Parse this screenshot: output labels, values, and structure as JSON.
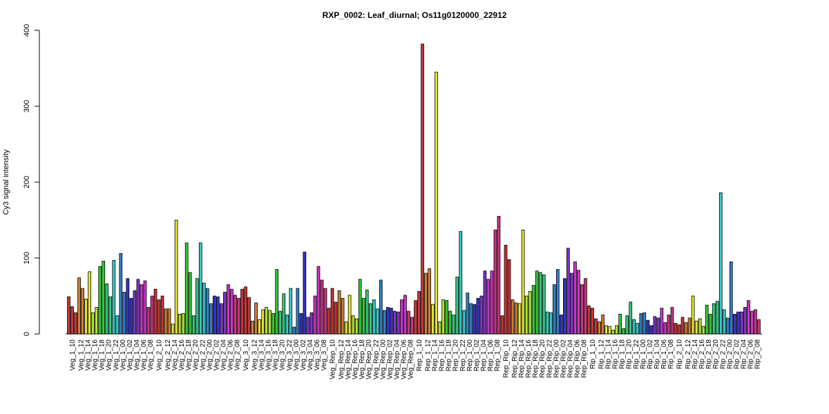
{
  "chart_data": {
    "type": "bar",
    "title": "RXP_0002: Leaf_diurnal; Os11g0120000_22912",
    "ylabel": "Cy3 signal intensity",
    "xlabel": "",
    "ylim": [
      0,
      400
    ],
    "yticks": [
      0,
      100,
      200,
      300,
      400
    ],
    "grid": false,
    "legend": "none",
    "groups": [
      {
        "label": "Veg_1_10",
        "values": [
          49,
          36,
          28
        ],
        "color": "#cc3333"
      },
      {
        "label": "Veg_1_12",
        "values": [
          74,
          60
        ],
        "color": "#cc8033"
      },
      {
        "label": "Veg_1_14",
        "values": [
          46,
          82
        ],
        "color": "#e6e633"
      },
      {
        "label": "Veg_1_16",
        "values": [
          28,
          35
        ],
        "color": "#b3e633"
      },
      {
        "label": "Veg_1_18",
        "values": [
          89,
          96
        ],
        "color": "#33cc33"
      },
      {
        "label": "Veg_1_20",
        "values": [
          66,
          49
        ],
        "color": "#33cc80"
      },
      {
        "label": "Veg_1_22",
        "values": [
          97,
          24
        ],
        "color": "#33cccc"
      },
      {
        "label": "Veg_1_00",
        "values": [
          106,
          55
        ],
        "color": "#3380cc"
      },
      {
        "label": "Veg_1_02",
        "values": [
          73,
          47
        ],
        "color": "#3333cc"
      },
      {
        "label": "Veg_1_04",
        "values": [
          57,
          72
        ],
        "color": "#8033cc"
      },
      {
        "label": "Veg_1_06",
        "values": [
          65,
          70
        ],
        "color": "#cc33cc"
      },
      {
        "label": "Veg_1_08",
        "values": [
          35,
          50
        ],
        "color": "#cc3380"
      },
      {
        "label": "Veg_2_10",
        "values": [
          59,
          45,
          50
        ],
        "color": "#cc3333"
      },
      {
        "label": "Veg_2_12",
        "values": [
          33,
          33
        ],
        "color": "#cc8033"
      },
      {
        "label": "Veg_2_14",
        "values": [
          13,
          150
        ],
        "color": "#e6e633"
      },
      {
        "label": "Veg_2_16",
        "values": [
          26,
          27
        ],
        "color": "#b3e633"
      },
      {
        "label": "Veg_2_18",
        "values": [
          120,
          81
        ],
        "color": "#33cc33"
      },
      {
        "label": "Veg_2_20",
        "values": [
          24,
          73
        ],
        "color": "#33cc80"
      },
      {
        "label": "Veg_2_22",
        "values": [
          120,
          67
        ],
        "color": "#33cccc"
      },
      {
        "label": "Veg_2_00",
        "values": [
          60,
          40
        ],
        "color": "#3380cc"
      },
      {
        "label": "Veg_2_02",
        "values": [
          50,
          49
        ],
        "color": "#3333cc"
      },
      {
        "label": "Veg_2_04",
        "values": [
          40,
          55
        ],
        "color": "#8033cc"
      },
      {
        "label": "Veg_2_06",
        "values": [
          65,
          59
        ],
        "color": "#cc33cc"
      },
      {
        "label": "Veg_2_08",
        "values": [
          51,
          47
        ],
        "color": "#cc3380"
      },
      {
        "label": "Veg_3_10",
        "values": [
          59,
          62,
          48
        ],
        "color": "#cc3333"
      },
      {
        "label": "Veg_3_12",
        "values": [
          17,
          41
        ],
        "color": "#cc8033"
      },
      {
        "label": "Veg_3_14",
        "values": [
          19,
          32
        ],
        "color": "#e6e633"
      },
      {
        "label": "Veg_3_16",
        "values": [
          35,
          31
        ],
        "color": "#b3e633"
      },
      {
        "label": "Veg_3_18",
        "values": [
          27,
          85
        ],
        "color": "#33cc33"
      },
      {
        "label": "Veg_3_20",
        "values": [
          30,
          53
        ],
        "color": "#33cc80"
      },
      {
        "label": "Veg_3_22",
        "values": [
          25,
          60
        ],
        "color": "#33cccc"
      },
      {
        "label": "Veg_3_00",
        "values": [
          9,
          60
        ],
        "color": "#3380cc"
      },
      {
        "label": "Veg_3_02",
        "values": [
          27,
          108
        ],
        "color": "#3333cc"
      },
      {
        "label": "Veg_3_04",
        "values": [
          22,
          28
        ],
        "color": "#8033cc"
      },
      {
        "label": "Veg_3_06",
        "values": [
          50,
          89
        ],
        "color": "#cc33cc"
      },
      {
        "label": "Veg_3_08",
        "values": [
          71,
          60
        ],
        "color": "#cc3380"
      },
      {
        "label": "Veg_Rep_10",
        "values": [
          34,
          60,
          42
        ],
        "color": "#cc3333"
      },
      {
        "label": "Veg_Rep_12",
        "values": [
          57,
          47
        ],
        "color": "#cc8033"
      },
      {
        "label": "Veg_Rep_14",
        "values": [
          16,
          51
        ],
        "color": "#e6e633"
      },
      {
        "label": "Veg_Rep_16",
        "values": [
          24,
          20
        ],
        "color": "#b3e633"
      },
      {
        "label": "Veg_Rep_18",
        "values": [
          72,
          47
        ],
        "color": "#33cc33"
      },
      {
        "label": "Veg_Rep_20",
        "values": [
          58,
          40
        ],
        "color": "#33cc80"
      },
      {
        "label": "Veg_Rep_22",
        "values": [
          45,
          33
        ],
        "color": "#33cccc"
      },
      {
        "label": "Veg_Rep_00",
        "values": [
          71,
          31
        ],
        "color": "#3380cc"
      },
      {
        "label": "Veg_Rep_02",
        "values": [
          35,
          34
        ],
        "color": "#3333cc"
      },
      {
        "label": "Veg_Rep_04",
        "values": [
          30,
          29
        ],
        "color": "#8033cc"
      },
      {
        "label": "Veg_Rep_06",
        "values": [
          45,
          51
        ],
        "color": "#cc33cc"
      },
      {
        "label": "Veg_Rep_08",
        "values": [
          30,
          22
        ],
        "color": "#cc3380"
      },
      {
        "label": "Rep_1_10",
        "values": [
          44,
          56,
          382
        ],
        "color": "#cc3333"
      },
      {
        "label": "Rep_1_12",
        "values": [
          80,
          86
        ],
        "color": "#cc8033"
      },
      {
        "label": "Rep_1_14",
        "values": [
          39,
          345
        ],
        "color": "#e6e633"
      },
      {
        "label": "Rep_1_16",
        "values": [
          16,
          45
        ],
        "color": "#b3e633"
      },
      {
        "label": "Rep_1_18",
        "values": [
          44,
          30
        ],
        "color": "#33cc33"
      },
      {
        "label": "Rep_1_20",
        "values": [
          25,
          75
        ],
        "color": "#33cc80"
      },
      {
        "label": "Rep_1_22",
        "values": [
          135,
          31
        ],
        "color": "#33cccc"
      },
      {
        "label": "Rep_1_00",
        "values": [
          54,
          40
        ],
        "color": "#3380cc"
      },
      {
        "label": "Rep_1_02",
        "values": [
          39,
          47
        ],
        "color": "#3333cc"
      },
      {
        "label": "Rep_1_04",
        "values": [
          50,
          83
        ],
        "color": "#8033cc"
      },
      {
        "label": "Rep_1_06",
        "values": [
          72,
          83
        ],
        "color": "#cc33cc"
      },
      {
        "label": "Rep_1_08",
        "values": [
          137,
          155
        ],
        "color": "#cc3380"
      },
      {
        "label": "Rep_Rip_10",
        "values": [
          24,
          117,
          98
        ],
        "color": "#cc3333"
      },
      {
        "label": "Rep_Rip_12",
        "values": [
          45,
          41
        ],
        "color": "#cc8033"
      },
      {
        "label": "Rep_Rip_14",
        "values": [
          40,
          137
        ],
        "color": "#e6e633"
      },
      {
        "label": "Rep_Rip_16",
        "values": [
          50,
          56
        ],
        "color": "#b3e633"
      },
      {
        "label": "Rep_Rip_18",
        "values": [
          64,
          83
        ],
        "color": "#33cc33"
      },
      {
        "label": "Rep_Rip_20",
        "values": [
          81,
          78
        ],
        "color": "#33cc80"
      },
      {
        "label": "Rep_Rip_22",
        "values": [
          29,
          28
        ],
        "color": "#33cccc"
      },
      {
        "label": "Rep_Rip_00",
        "values": [
          65,
          85
        ],
        "color": "#3380cc"
      },
      {
        "label": "Rep_Rip_02",
        "values": [
          25,
          73
        ],
        "color": "#3333cc"
      },
      {
        "label": "Rep_Rip_04",
        "values": [
          113,
          80
        ],
        "color": "#8033cc"
      },
      {
        "label": "Rep_Rip_06",
        "values": [
          95,
          84
        ],
        "color": "#cc33cc"
      },
      {
        "label": "Rep_Rip_08",
        "values": [
          65,
          73
        ],
        "color": "#cc3380"
      },
      {
        "label": "Rip_1_10",
        "values": [
          37,
          34,
          20
        ],
        "color": "#cc3333"
      },
      {
        "label": "Rip_1_12",
        "values": [
          16,
          25
        ],
        "color": "#cc8033"
      },
      {
        "label": "Rip_1_14",
        "values": [
          11,
          10
        ],
        "color": "#e6e633"
      },
      {
        "label": "Rip_1_16",
        "values": [
          5,
          11
        ],
        "color": "#b3e633"
      },
      {
        "label": "Rip_1_18",
        "values": [
          26,
          7
        ],
        "color": "#33cc33"
      },
      {
        "label": "Rip_1_20",
        "values": [
          24,
          42
        ],
        "color": "#33cc80"
      },
      {
        "label": "Rip_1_22",
        "values": [
          19,
          14
        ],
        "color": "#33cccc"
      },
      {
        "label": "Rip_1_00",
        "values": [
          27,
          28
        ],
        "color": "#3380cc"
      },
      {
        "label": "Rip_1_02",
        "values": [
          18,
          11
        ],
        "color": "#3333cc"
      },
      {
        "label": "Rip_1_04",
        "values": [
          23,
          21
        ],
        "color": "#8033cc"
      },
      {
        "label": "Rip_1_06",
        "values": [
          34,
          15
        ],
        "color": "#cc33cc"
      },
      {
        "label": "Rip_1_08",
        "values": [
          25,
          35
        ],
        "color": "#cc3380"
      },
      {
        "label": "Rip_2_10",
        "values": [
          14,
          12,
          22
        ],
        "color": "#cc3333"
      },
      {
        "label": "Rip_2_12",
        "values": [
          15,
          21
        ],
        "color": "#cc8033"
      },
      {
        "label": "Rip_2_14",
        "values": [
          50,
          17
        ],
        "color": "#e6e633"
      },
      {
        "label": "Rip_2_16",
        "values": [
          20,
          10
        ],
        "color": "#b3e633"
      },
      {
        "label": "Rip_2_18",
        "values": [
          38,
          26
        ],
        "color": "#33cc33"
      },
      {
        "label": "Rip_2_20",
        "values": [
          40,
          43
        ],
        "color": "#33cc80"
      },
      {
        "label": "Rip_2_22",
        "values": [
          186,
          32
        ],
        "color": "#33cccc"
      },
      {
        "label": "Rip_2_00",
        "values": [
          21,
          95
        ],
        "color": "#3380cc"
      },
      {
        "label": "Rip_2_02",
        "values": [
          26,
          29
        ],
        "color": "#3333cc"
      },
      {
        "label": "Rip_2_04",
        "values": [
          29,
          35
        ],
        "color": "#8033cc"
      },
      {
        "label": "Rip_2_06",
        "values": [
          44,
          30
        ],
        "color": "#cc33cc"
      },
      {
        "label": "Rip_2_08",
        "values": [
          32,
          19
        ],
        "color": "#cc3380"
      }
    ]
  }
}
